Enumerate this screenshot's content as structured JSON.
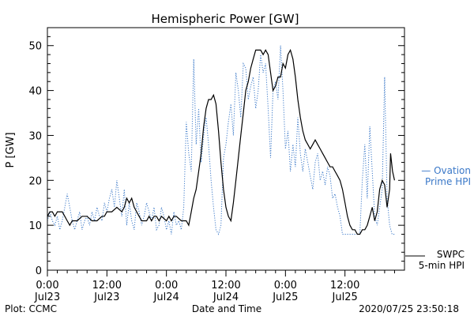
{
  "chart_data": {
    "type": "line",
    "title": "Hemispheric Power [GW]",
    "ylabel": "P [GW]",
    "xlabel": "Date and Time",
    "ylim": [
      0,
      54
    ],
    "xlim": [
      0,
      72
    ],
    "yticks": [
      0,
      10,
      20,
      30,
      40,
      50
    ],
    "xticks": [
      {
        "x": 0,
        "time": "0:00",
        "date": "Jul23"
      },
      {
        "x": 12,
        "time": "12:00",
        "date": "Jul23"
      },
      {
        "x": 24,
        "time": "0:00",
        "date": "Jul24"
      },
      {
        "x": 36,
        "time": "12:00",
        "date": "Jul24"
      },
      {
        "x": 48,
        "time": "0:00",
        "date": "Jul25"
      },
      {
        "x": 60,
        "time": "12:00",
        "date": "Jul25"
      }
    ],
    "series": [
      {
        "name": "SWPC 5-min HPI",
        "color": "#000000",
        "style": "solid",
        "points": [
          [
            0,
            12
          ],
          [
            0.5,
            13
          ],
          [
            1,
            13
          ],
          [
            1.5,
            12
          ],
          [
            2,
            13
          ],
          [
            3,
            13
          ],
          [
            3.5,
            12
          ],
          [
            4,
            11
          ],
          [
            4.5,
            10
          ],
          [
            5,
            11
          ],
          [
            6,
            11
          ],
          [
            7,
            12
          ],
          [
            8,
            12
          ],
          [
            9,
            11
          ],
          [
            10,
            11
          ],
          [
            11,
            12
          ],
          [
            11.5,
            12
          ],
          [
            12,
            13
          ],
          [
            13,
            13
          ],
          [
            14,
            14
          ],
          [
            15,
            13
          ],
          [
            15.5,
            14
          ],
          [
            16,
            16
          ],
          [
            16.5,
            15
          ],
          [
            17,
            16
          ],
          [
            17.5,
            14
          ],
          [
            18,
            13
          ],
          [
            18.5,
            12
          ],
          [
            19,
            11
          ],
          [
            20,
            11
          ],
          [
            20.5,
            12
          ],
          [
            21,
            11
          ],
          [
            21.5,
            12
          ],
          [
            22,
            12
          ],
          [
            22.5,
            11
          ],
          [
            23,
            12
          ],
          [
            24,
            11
          ],
          [
            24.5,
            12
          ],
          [
            25,
            11
          ],
          [
            25.5,
            12
          ],
          [
            26,
            12
          ],
          [
            27,
            11
          ],
          [
            28,
            11
          ],
          [
            28.5,
            10
          ],
          [
            29,
            13
          ],
          [
            29.5,
            16
          ],
          [
            30,
            18
          ],
          [
            30.5,
            22
          ],
          [
            31,
            26
          ],
          [
            31.5,
            32
          ],
          [
            32,
            36
          ],
          [
            32.5,
            38
          ],
          [
            33,
            38
          ],
          [
            33.5,
            39
          ],
          [
            34,
            37
          ],
          [
            34.5,
            31
          ],
          [
            35,
            24
          ],
          [
            35.5,
            18
          ],
          [
            36,
            14
          ],
          [
            36.5,
            12
          ],
          [
            37,
            11
          ],
          [
            37.5,
            15
          ],
          [
            38,
            20
          ],
          [
            38.5,
            25
          ],
          [
            39,
            30
          ],
          [
            39.5,
            35
          ],
          [
            40,
            40
          ],
          [
            40.5,
            42
          ],
          [
            41,
            45
          ],
          [
            41.5,
            47
          ],
          [
            42,
            49
          ],
          [
            43,
            49
          ],
          [
            43.5,
            48
          ],
          [
            44,
            49
          ],
          [
            44.5,
            48
          ],
          [
            45,
            44
          ],
          [
            45.5,
            40
          ],
          [
            46,
            41
          ],
          [
            46.5,
            43
          ],
          [
            47,
            43
          ],
          [
            47.5,
            46
          ],
          [
            48,
            45
          ],
          [
            48.5,
            48
          ],
          [
            49,
            49
          ],
          [
            49.5,
            47
          ],
          [
            50,
            43
          ],
          [
            50.5,
            38
          ],
          [
            51,
            34
          ],
          [
            51.5,
            31
          ],
          [
            52,
            29
          ],
          [
            52.5,
            28
          ],
          [
            53,
            27
          ],
          [
            53.5,
            28
          ],
          [
            54,
            29
          ],
          [
            54.5,
            28
          ],
          [
            55,
            27
          ],
          [
            55.5,
            26
          ],
          [
            56,
            25
          ],
          [
            56.5,
            24
          ],
          [
            57,
            23
          ],
          [
            57.5,
            23
          ],
          [
            58,
            22
          ],
          [
            58.5,
            21
          ],
          [
            59,
            20
          ],
          [
            59.5,
            18
          ],
          [
            60,
            15
          ],
          [
            60.5,
            12
          ],
          [
            61,
            10
          ],
          [
            61.5,
            9
          ],
          [
            62,
            9
          ],
          [
            62.5,
            8
          ],
          [
            63,
            8
          ],
          [
            63.5,
            9
          ],
          [
            64,
            9
          ],
          [
            64.5,
            10
          ],
          [
            65,
            12
          ],
          [
            65.5,
            14
          ],
          [
            66,
            11
          ],
          [
            66.5,
            13
          ],
          [
            67,
            18
          ],
          [
            67.5,
            20
          ],
          [
            68,
            19
          ],
          [
            68.5,
            14
          ],
          [
            69,
            18
          ],
          [
            69.2,
            26
          ],
          [
            69.6,
            22
          ],
          [
            70,
            20
          ]
        ]
      },
      {
        "name": "Ovation Prime HPI",
        "color": "#3a78c8",
        "style": "dotted",
        "points": [
          [
            0,
            11
          ],
          [
            0.5,
            13
          ],
          [
            1,
            11
          ],
          [
            1.5,
            10
          ],
          [
            2,
            12
          ],
          [
            2.5,
            9
          ],
          [
            3,
            11
          ],
          [
            3.5,
            14
          ],
          [
            4,
            17
          ],
          [
            4.5,
            14
          ],
          [
            5,
            11
          ],
          [
            5.5,
            9
          ],
          [
            6,
            11
          ],
          [
            6.5,
            13
          ],
          [
            7,
            9
          ],
          [
            7.5,
            11
          ],
          [
            8,
            12
          ],
          [
            8.5,
            10
          ],
          [
            9,
            13
          ],
          [
            9.5,
            11
          ],
          [
            10,
            14
          ],
          [
            10.5,
            12
          ],
          [
            11,
            11
          ],
          [
            11.5,
            15
          ],
          [
            12,
            13
          ],
          [
            12.5,
            16
          ],
          [
            13,
            18
          ],
          [
            13.5,
            14
          ],
          [
            14,
            20
          ],
          [
            14.5,
            16
          ],
          [
            15,
            12
          ],
          [
            15.5,
            18
          ],
          [
            16,
            10
          ],
          [
            16.5,
            15
          ],
          [
            17,
            11
          ],
          [
            17.5,
            9
          ],
          [
            18,
            15
          ],
          [
            18.5,
            13
          ],
          [
            19,
            10
          ],
          [
            19.5,
            12
          ],
          [
            20,
            15
          ],
          [
            20.5,
            13
          ],
          [
            21,
            11
          ],
          [
            21.5,
            14
          ],
          [
            22,
            9
          ],
          [
            22.5,
            10
          ],
          [
            23,
            14
          ],
          [
            23.5,
            12
          ],
          [
            24,
            9
          ],
          [
            24.5,
            11
          ],
          [
            25,
            8
          ],
          [
            25.5,
            13
          ],
          [
            26,
            10
          ],
          [
            26.5,
            11
          ],
          [
            27,
            9
          ],
          [
            27.5,
            14
          ],
          [
            28,
            33
          ],
          [
            28.5,
            26
          ],
          [
            29,
            22
          ],
          [
            29.5,
            47
          ],
          [
            30,
            28
          ],
          [
            30.5,
            36
          ],
          [
            31,
            24
          ],
          [
            31.5,
            30
          ],
          [
            32,
            34
          ],
          [
            32.5,
            28
          ],
          [
            33,
            20
          ],
          [
            33.5,
            14
          ],
          [
            34,
            9
          ],
          [
            34.5,
            8
          ],
          [
            35,
            10
          ],
          [
            35.5,
            25
          ],
          [
            36,
            28
          ],
          [
            36.5,
            33
          ],
          [
            37,
            37
          ],
          [
            37.5,
            30
          ],
          [
            38,
            44
          ],
          [
            38.5,
            40
          ],
          [
            39,
            34
          ],
          [
            39.5,
            46
          ],
          [
            40,
            45
          ],
          [
            40.5,
            38
          ],
          [
            41,
            41
          ],
          [
            41.5,
            43
          ],
          [
            42,
            36
          ],
          [
            42.5,
            40
          ],
          [
            43,
            48
          ],
          [
            43.5,
            44
          ],
          [
            44,
            46
          ],
          [
            44.5,
            36
          ],
          [
            45,
            25
          ],
          [
            45.5,
            40
          ],
          [
            46,
            42
          ],
          [
            46.5,
            38
          ],
          [
            47,
            50
          ],
          [
            47.5,
            40
          ],
          [
            48,
            27
          ],
          [
            48.5,
            31
          ],
          [
            49,
            22
          ],
          [
            49.5,
            28
          ],
          [
            50,
            23
          ],
          [
            50.5,
            34
          ],
          [
            51,
            26
          ],
          [
            51.5,
            22
          ],
          [
            52,
            27
          ],
          [
            52.5,
            24
          ],
          [
            53,
            21
          ],
          [
            53.5,
            18
          ],
          [
            54,
            24
          ],
          [
            54.5,
            26
          ],
          [
            55,
            20
          ],
          [
            55.5,
            22
          ],
          [
            56,
            19
          ],
          [
            56.5,
            23
          ],
          [
            57,
            21
          ],
          [
            57.5,
            16
          ],
          [
            58,
            17
          ],
          [
            58.5,
            14
          ],
          [
            59,
            12
          ],
          [
            59.5,
            8
          ],
          [
            60,
            8
          ],
          [
            61,
            8
          ],
          [
            62,
            8
          ],
          [
            63,
            8
          ],
          [
            63.5,
            20
          ],
          [
            64,
            28
          ],
          [
            64.5,
            16
          ],
          [
            65,
            32
          ],
          [
            65.5,
            22
          ],
          [
            66,
            12
          ],
          [
            66.5,
            10
          ],
          [
            67,
            14
          ],
          [
            67.5,
            18
          ],
          [
            68,
            43
          ],
          [
            68.5,
            16
          ],
          [
            69,
            10
          ],
          [
            69.5,
            8
          ],
          [
            70,
            8
          ]
        ]
      }
    ],
    "legend": [
      {
        "lines": [
          "— Ovation",
          "Prime HPI"
        ],
        "color": "#3a78c8"
      },
      {
        "lines": [
          "SWPC",
          "5-min HPI"
        ],
        "color": "#000000"
      }
    ]
  },
  "footer": {
    "plot_credit": "Plot: CCMC",
    "timestamp": "2020/07/25 23:50:18"
  }
}
